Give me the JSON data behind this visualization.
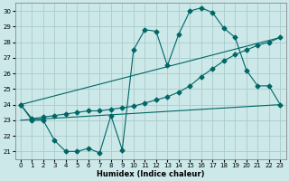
{
  "xlabel": "Humidex (Indice chaleur)",
  "xlim": [
    -0.5,
    23.5
  ],
  "ylim": [
    20.5,
    30.5
  ],
  "yticks": [
    21,
    22,
    23,
    24,
    25,
    26,
    27,
    28,
    29,
    30
  ],
  "xticks": [
    0,
    1,
    2,
    3,
    4,
    5,
    6,
    7,
    8,
    9,
    10,
    11,
    12,
    13,
    14,
    15,
    16,
    17,
    18,
    19,
    20,
    21,
    22,
    23
  ],
  "background_color": "#cce8e8",
  "grid_color": "#aacccc",
  "line_color": "#006666",
  "curve1_x": [
    0,
    1,
    2,
    3,
    4,
    5,
    6,
    7,
    8,
    9,
    10,
    11,
    12,
    13,
    14,
    15,
    16,
    17,
    18,
    19,
    20,
    21,
    22,
    23
  ],
  "curve1_y": [
    24.0,
    23.0,
    23.0,
    21.7,
    21.0,
    21.0,
    21.2,
    20.9,
    23.3,
    21.1,
    27.5,
    28.8,
    28.7,
    26.5,
    28.5,
    30.0,
    30.2,
    29.9,
    28.9,
    28.3,
    26.2,
    25.2,
    25.2,
    24.0
  ],
  "curve2_x": [
    0,
    1,
    2,
    3,
    4,
    5,
    6,
    7,
    8,
    9,
    10,
    11,
    12,
    13,
    14,
    15,
    16,
    17,
    18,
    19,
    20,
    21,
    22,
    23
  ],
  "curve2_y": [
    24.0,
    23.1,
    23.2,
    23.3,
    23.4,
    23.5,
    23.6,
    23.6,
    23.7,
    23.8,
    23.9,
    24.1,
    24.3,
    24.5,
    24.8,
    25.2,
    25.8,
    26.3,
    26.8,
    27.2,
    27.5,
    27.8,
    28.0,
    28.3
  ],
  "line3_x": [
    0,
    23
  ],
  "line3_y": [
    24.0,
    28.3
  ],
  "line4_x": [
    0,
    23
  ],
  "line4_y": [
    23.0,
    24.0
  ],
  "markersize": 2.5
}
